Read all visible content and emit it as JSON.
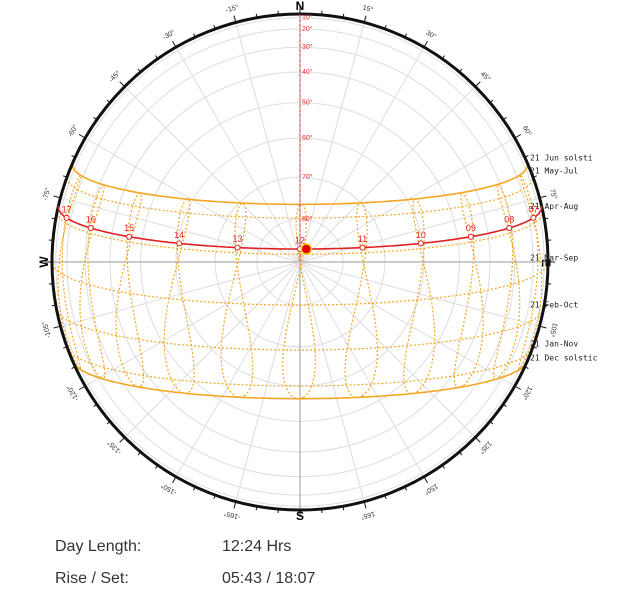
{
  "compass": {
    "north": "N",
    "east": "E",
    "south": "S",
    "west": "W"
  },
  "azimuth_labels": [
    "15°",
    "30°",
    "45°",
    "60°",
    "75°",
    "105°",
    "120°",
    "135°",
    "150°",
    "165°",
    "-165°",
    "-150°",
    "-135°",
    "-120°",
    "-105°",
    "-75°",
    "-60°",
    "-45°",
    "-30°",
    "-15°"
  ],
  "altitude_labels": [
    "10°",
    "20°",
    "30°",
    "40°",
    "50°",
    "60°",
    "70°",
    "80°"
  ],
  "date_labels": [
    "21 Jun solsti",
    "21 May-Jul",
    "21 Apr-Aug",
    "21 Mar-Sep",
    "21 Feb-Oct",
    "21 Jan-Nov",
    "21 Dec solstic"
  ],
  "hour_labels": [
    "07",
    "08",
    "09",
    "10",
    "11",
    "12",
    "13",
    "14",
    "15",
    "16",
    "17"
  ],
  "info": {
    "day_length_label": "Day Length:",
    "day_length": "12:24 Hrs",
    "rise_set_label": "Rise / Set:",
    "rise_set": "05:43 / 18:07"
  }
}
